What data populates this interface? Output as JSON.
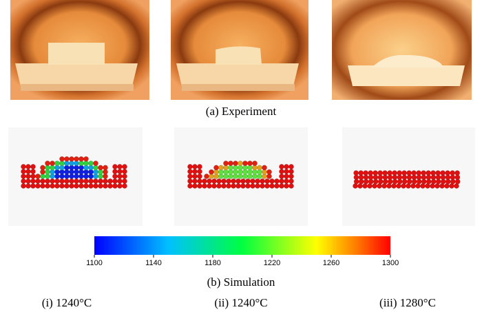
{
  "figure": {
    "experiment_caption": "(a) Experiment",
    "simulation_caption": "(b) Simulation",
    "colorbar": {
      "range": [
        1100,
        1300
      ],
      "ticks": [
        1100,
        1140,
        1180,
        1220,
        1260,
        1300
      ]
    },
    "panels": [
      {
        "label": "(i) 1240°C"
      },
      {
        "label": "(ii) 1240°C"
      },
      {
        "label": "(iii) 1280°C"
      }
    ]
  }
}
